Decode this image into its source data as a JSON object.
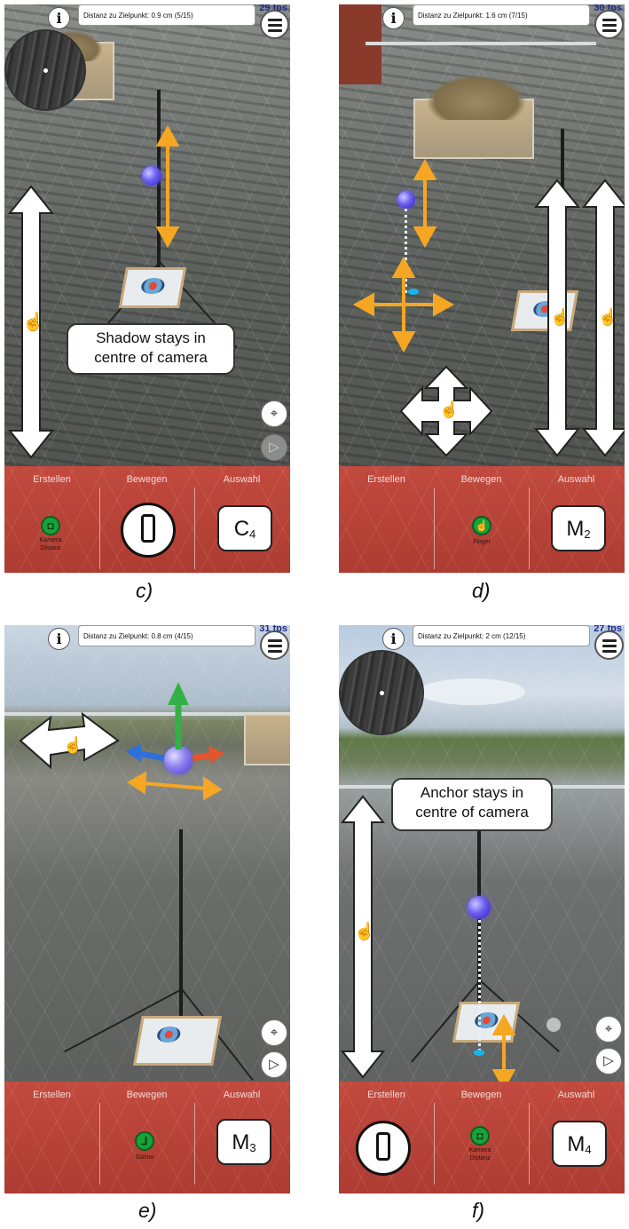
{
  "panels": {
    "c": {
      "caption": "c)",
      "distance_text": "Distanz zu Zielpunkt: 0.9 cm (5/15)",
      "fps": "29 fps",
      "tabs": [
        "Erstellen",
        "Bewegen",
        "Auswahl"
      ],
      "tool_caption": "Kamera\nDistanz",
      "mode_letter": "C",
      "mode_sub": "4",
      "callout": "Shadow stays in centre of camera"
    },
    "d": {
      "caption": "d)",
      "distance_text": "Distanz zu Zielpunkt: 1.6 cm (7/15)",
      "fps": "30 fps",
      "tabs": [
        "Erstellen",
        "Bewegen",
        "Auswahl"
      ],
      "tool_caption": "Finger",
      "mode_letter": "M",
      "mode_sub": "2"
    },
    "e": {
      "caption": "e)",
      "distance_text": "Distanz zu Zielpunkt: 0.8 cm (4/15)",
      "fps": "31 fps",
      "tabs": [
        "Erstellen",
        "Bewegen",
        "Auswahl"
      ],
      "tool_caption": "Gizmo",
      "mode_letter": "M",
      "mode_sub": "3"
    },
    "f": {
      "caption": "f)",
      "distance_text": "Distanz zu Zielpunkt: 2 cm (12/15)",
      "fps": "27 fps",
      "tabs": [
        "Erstellen",
        "Bewegen",
        "Auswahl"
      ],
      "tool_caption": "Kamera\nDistanz",
      "mode_letter": "M",
      "mode_sub": "4",
      "callout": "Anchor stays in centre of camera"
    }
  },
  "hud": {
    "info_glyph": "i"
  },
  "icons": [
    "info-icon",
    "menu-icon",
    "minimap",
    "location-pin-icon",
    "play-icon",
    "camera-distance-icon",
    "finger-icon",
    "gizmo-icon",
    "phone-rotate-icon",
    "hand-pointer-icon"
  ],
  "colors": {
    "toolbar_red": "#b8443a",
    "arrow_orange": "#f5a623",
    "green_tool": "#18a33a",
    "anchor_blue": "#4b3ee0"
  }
}
